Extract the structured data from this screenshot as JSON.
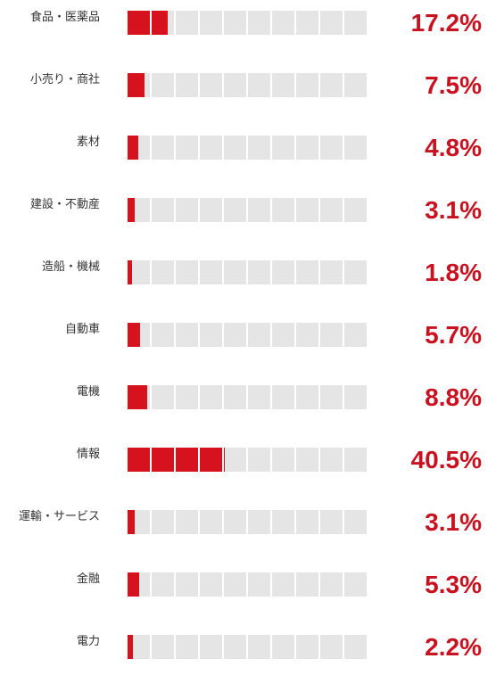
{
  "colors": {
    "accent": "#d7121f",
    "empty_cell": "#e5e5e5",
    "label_text": "#333333"
  },
  "chart_data": {
    "type": "bar",
    "cells_per_bar": 10,
    "units_per_cell": 10,
    "categories": [
      "食品・医薬品",
      "小売り・商社",
      "素材",
      "建設・不動産",
      "造船・機械",
      "自動車",
      "電機",
      "情報",
      "運輸・サービス",
      "金融",
      "電力"
    ],
    "values": [
      17.2,
      7.5,
      4.8,
      3.1,
      1.8,
      5.7,
      8.8,
      40.5,
      3.1,
      5.3,
      2.2
    ],
    "value_labels": [
      "17.2%",
      "7.5%",
      "4.8%",
      "3.1%",
      "1.8%",
      "5.7%",
      "8.8%",
      "40.5%",
      "3.1%",
      "5.3%",
      "2.2%"
    ]
  }
}
